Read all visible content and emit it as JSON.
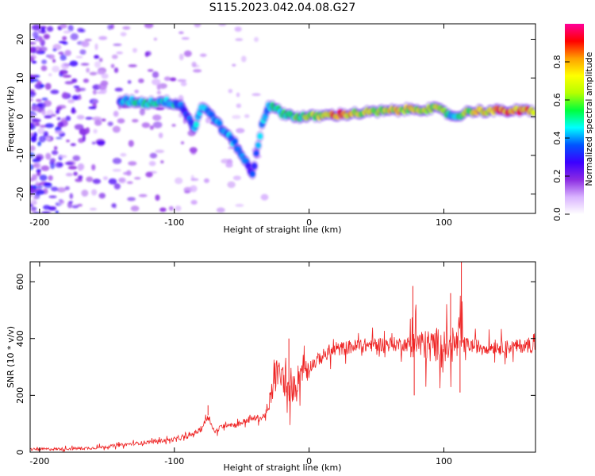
{
  "title": "S115.2023.042.04.08.G27",
  "chart_data": [
    {
      "type": "heatmap",
      "xlabel": "Height of straight line (km)",
      "ylabel": "Frequency (Hz)",
      "xlim": [
        -207,
        168
      ],
      "ylim": [
        -25,
        24
      ],
      "x_ticks": [
        -200,
        -100,
        0,
        100
      ],
      "y_ticks": [
        -20,
        -10,
        0,
        10,
        20
      ],
      "colorbar": {
        "label": "Normalized spectral amplitude",
        "ticks": [
          0.0,
          0.2,
          0.4,
          0.6,
          0.8
        ],
        "range": [
          0,
          1
        ],
        "colors": [
          "#ffffff",
          "#d9b3ff",
          "#8b2be2",
          "#3b00ff",
          "#0055ff",
          "#00ffff",
          "#00ff3c",
          "#b6ff00",
          "#ffff00",
          "#ffa000",
          "#ff0000",
          "#ff0099"
        ]
      },
      "ridge": [
        {
          "x": -140,
          "y": 4,
          "amp": 0.45
        },
        {
          "x": -130,
          "y": 4,
          "amp": 0.5
        },
        {
          "x": -120,
          "y": 3.5,
          "amp": 0.55
        },
        {
          "x": -110,
          "y": 4,
          "amp": 0.5
        },
        {
          "x": -100,
          "y": 3.5,
          "amp": 0.5
        },
        {
          "x": -95,
          "y": 3,
          "amp": 0.4
        },
        {
          "x": -90,
          "y": 0,
          "amp": 0.35
        },
        {
          "x": -85,
          "y": -3,
          "amp": 0.45
        },
        {
          "x": -80,
          "y": 2.5,
          "amp": 0.45
        },
        {
          "x": -72,
          "y": 0.5,
          "amp": 0.45
        },
        {
          "x": -65,
          "y": -3,
          "amp": 0.45
        },
        {
          "x": -55,
          "y": -7,
          "amp": 0.45
        },
        {
          "x": -48,
          "y": -11,
          "amp": 0.4
        },
        {
          "x": -42,
          "y": -15,
          "amp": 0.35
        },
        {
          "x": -35,
          "y": -2,
          "amp": 0.45
        },
        {
          "x": -30,
          "y": 3,
          "amp": 0.5
        },
        {
          "x": -20,
          "y": 1,
          "amp": 0.55
        },
        {
          "x": -10,
          "y": 0,
          "amp": 0.6
        },
        {
          "x": 0,
          "y": 0,
          "amp": 0.65
        },
        {
          "x": 20,
          "y": 0.5,
          "amp": 0.9
        },
        {
          "x": 40,
          "y": 1,
          "amp": 0.7
        },
        {
          "x": 60,
          "y": 1.5,
          "amp": 0.75
        },
        {
          "x": 80,
          "y": 2,
          "amp": 0.75
        },
        {
          "x": 95,
          "y": 2,
          "amp": 0.7
        },
        {
          "x": 108,
          "y": 0,
          "amp": 0.5
        },
        {
          "x": 120,
          "y": 1.5,
          "amp": 0.7
        },
        {
          "x": 140,
          "y": 1.5,
          "amp": 0.9
        },
        {
          "x": 168,
          "y": 1.5,
          "amp": 0.9
        }
      ]
    },
    {
      "type": "line",
      "xlabel": "Height of straight line (km)",
      "ylabel": "SNR (10 * v/v)",
      "xlim": [
        -207,
        168
      ],
      "ylim": [
        0,
        670
      ],
      "x_ticks": [
        -200,
        -100,
        0,
        100
      ],
      "y_ticks": [
        0,
        200,
        400,
        600
      ],
      "color": "#ee2222",
      "x": [
        -207,
        -180,
        -160,
        -140,
        -120,
        -100,
        -90,
        -80,
        -75,
        -70,
        -65,
        -60,
        -55,
        -50,
        -45,
        -40,
        -35,
        -30,
        -25,
        -20,
        -15,
        -10,
        -5,
        0,
        10,
        20,
        30,
        40,
        50,
        60,
        70,
        75,
        78,
        80,
        85,
        90,
        95,
        100,
        105,
        110,
        113,
        115,
        120,
        130,
        140,
        150,
        160,
        168
      ],
      "y": [
        10,
        12,
        15,
        25,
        35,
        45,
        55,
        80,
        130,
        70,
        90,
        100,
        95,
        105,
        115,
        120,
        120,
        150,
        280,
        270,
        200,
        240,
        300,
        300,
        340,
        360,
        370,
        375,
        380,
        380,
        380,
        380,
        400,
        390,
        370,
        375,
        380,
        375,
        370,
        380,
        400,
        380,
        375,
        370,
        372,
        370,
        375,
        375
      ],
      "spikes": [
        {
          "x": -75,
          "y": 165
        },
        {
          "x": -15,
          "y": 400
        },
        {
          "x": 77,
          "y": 585
        },
        {
          "x": 78,
          "y": 200
        },
        {
          "x": 105,
          "y": 560
        },
        {
          "x": 113,
          "y": 670
        },
        {
          "x": 112,
          "y": 210
        }
      ]
    }
  ]
}
